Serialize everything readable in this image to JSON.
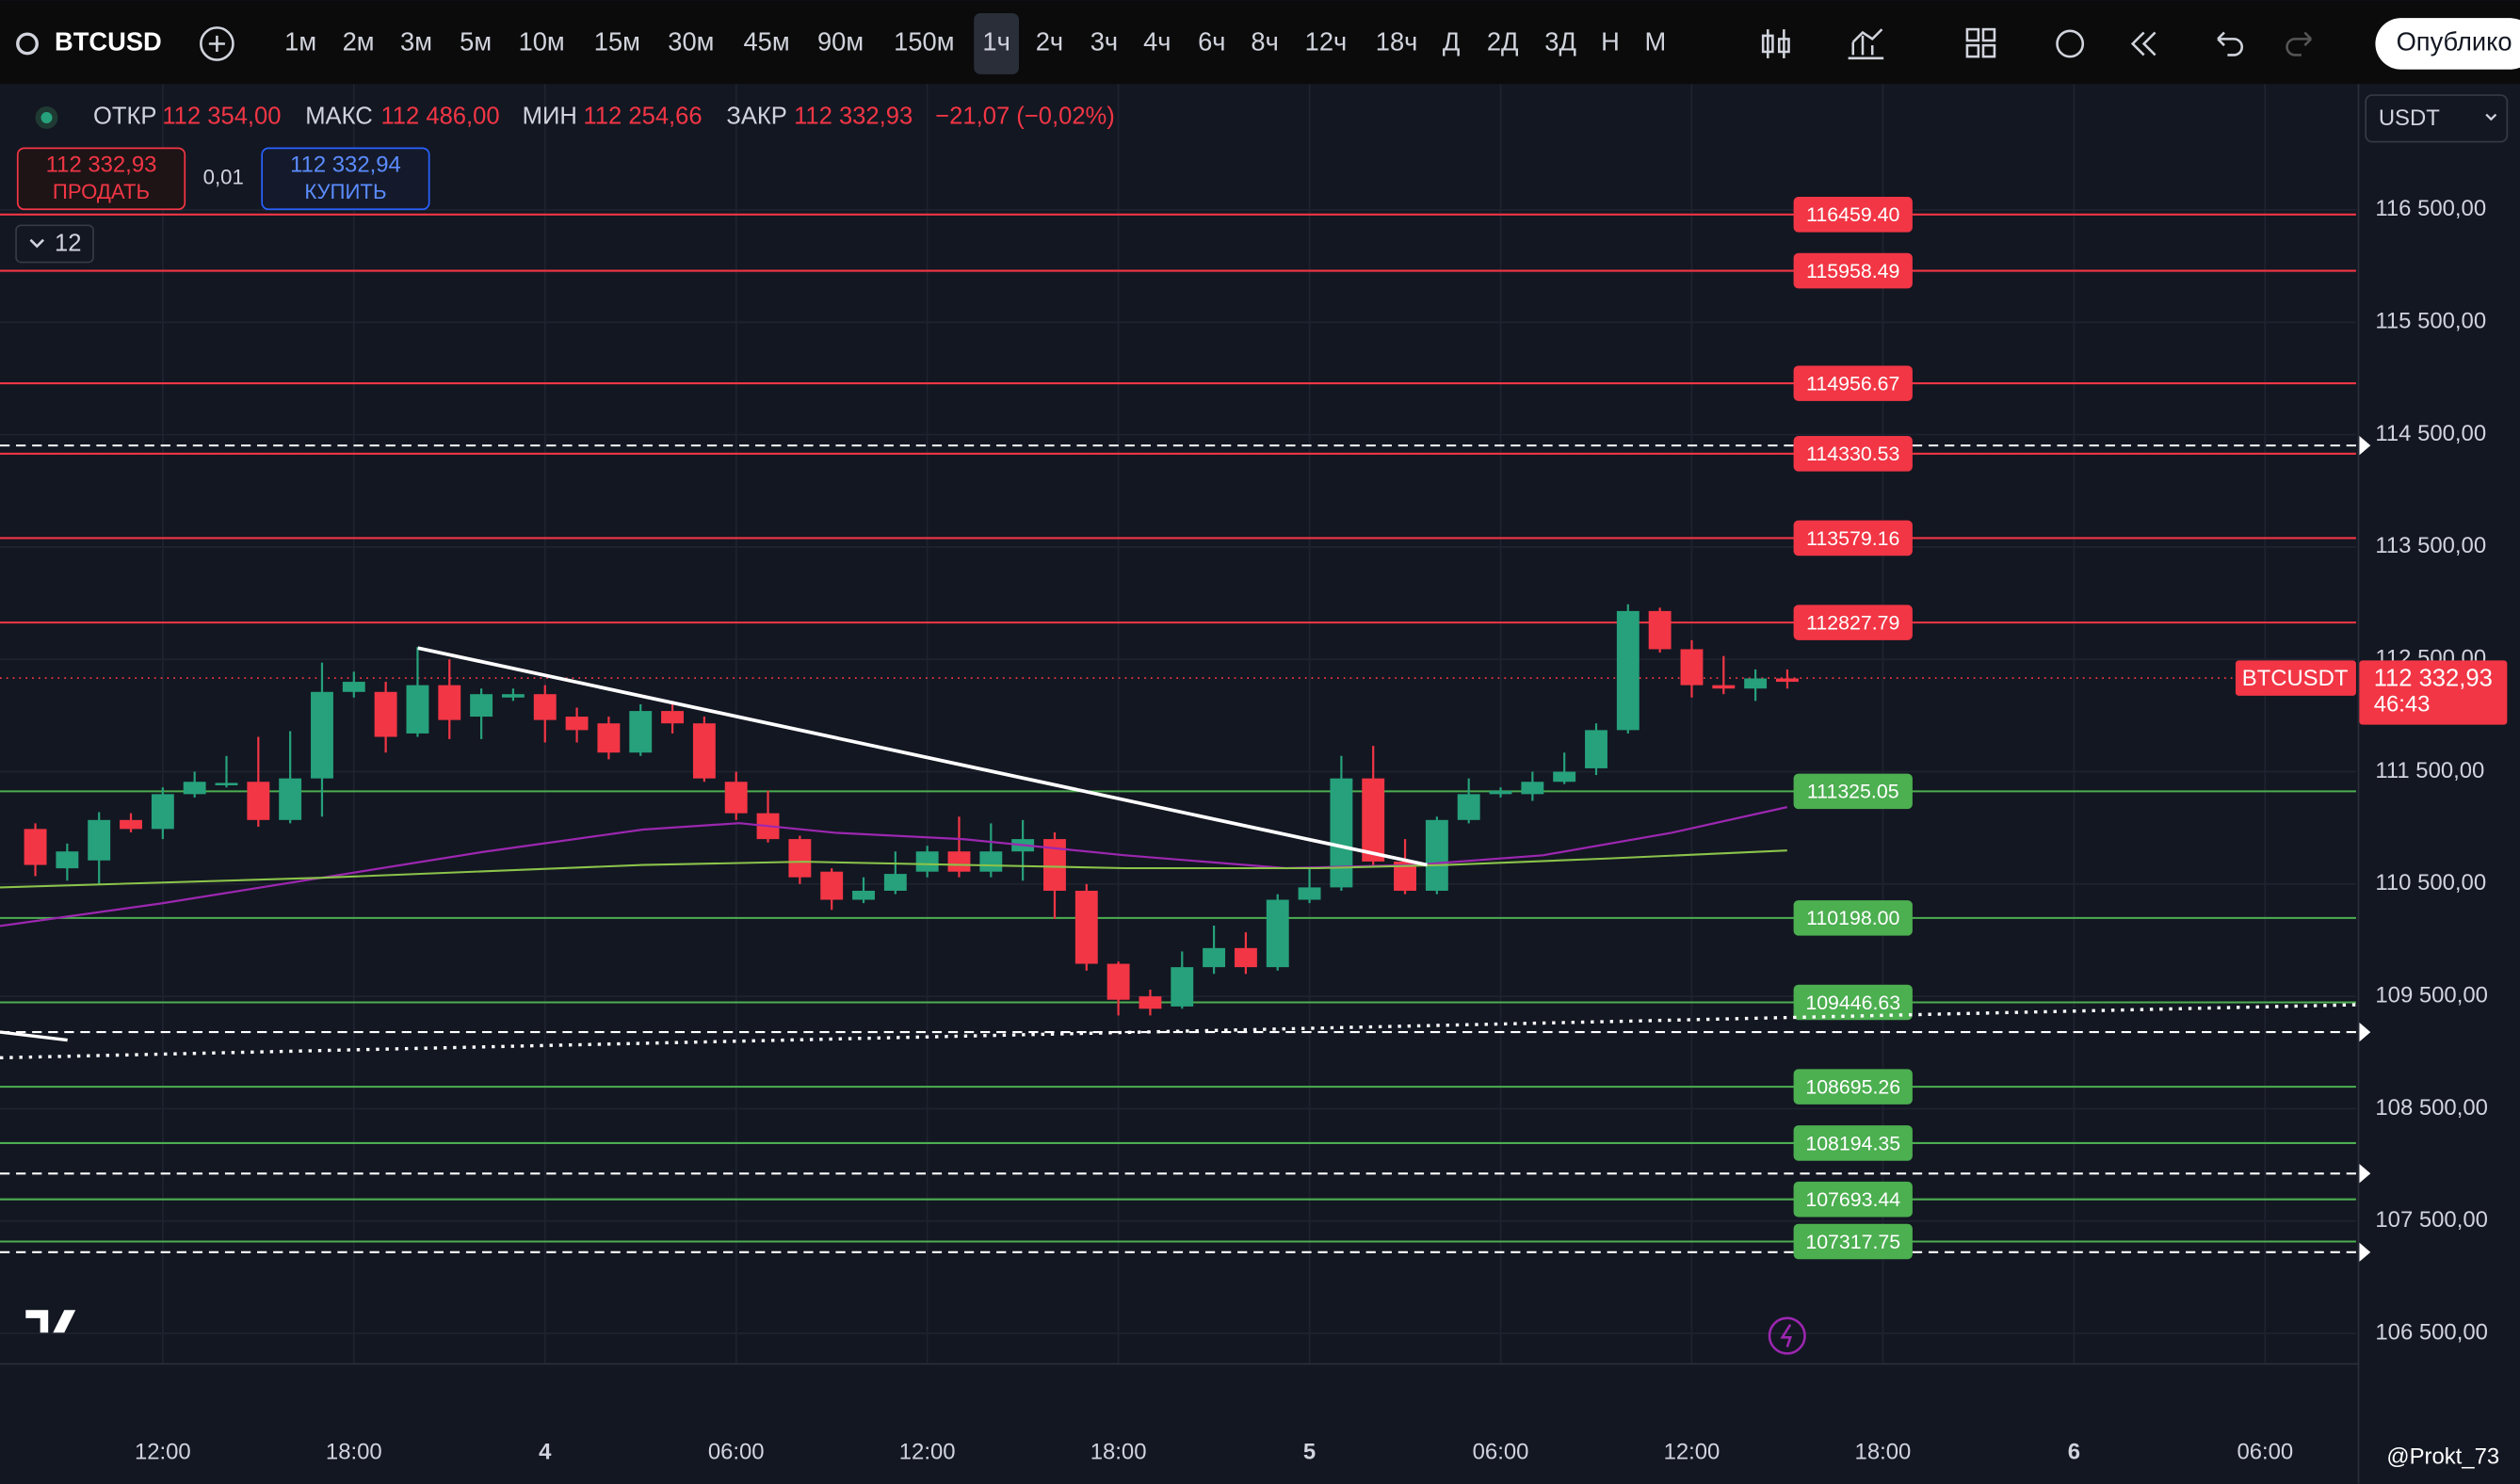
{
  "toolbar": {
    "symbol": "BTCUSD",
    "timeframes": [
      "1м",
      "2м",
      "3м",
      "5м",
      "10м",
      "15м",
      "30м",
      "45м",
      "90м",
      "150м",
      "1ч",
      "2ч",
      "3ч",
      "4ч",
      "6ч",
      "8ч",
      "12ч",
      "18ч",
      "Д",
      "2Д",
      "3Д",
      "Н",
      "М"
    ],
    "active_timeframe": "1ч",
    "publish": "Опублико"
  },
  "legend": {
    "open_label": "ОТКР",
    "open": "112 354,00",
    "high_label": "МАКС",
    "high": "112 486,00",
    "low_label": "МИН",
    "low": "112 254,66",
    "close_label": "ЗАКР",
    "close": "112 332,93",
    "change": "−21,07 (−0,02%)"
  },
  "trade": {
    "sell_price": "112 332,93",
    "sell": "ПРОДАТЬ",
    "spread": "0,01",
    "buy_price": "112 332,94",
    "buy": "КУПИТЬ"
  },
  "indicators_count": "12",
  "currency": "USDT",
  "watermark": "@Prokt_73",
  "chart": {
    "type": "candlestick",
    "ylim": [
      106250,
      117550
    ],
    "yticks": [
      {
        "value": 116500,
        "label": "116 500,00"
      },
      {
        "value": 115500,
        "label": "115 500,00"
      },
      {
        "value": 114500,
        "label": "114 500,00"
      },
      {
        "value": 113500,
        "label": "113 500,00"
      },
      {
        "value": 112500,
        "label": "112 500,00"
      },
      {
        "value": 111500,
        "label": "111 500,00"
      },
      {
        "value": 110500,
        "label": "110 500,00"
      },
      {
        "value": 109500,
        "label": "109 500,00"
      },
      {
        "value": 108500,
        "label": "108 500,00"
      },
      {
        "value": 107500,
        "label": "107 500,00"
      },
      {
        "value": 106500,
        "label": "106 500,00"
      }
    ],
    "time_labels": [
      "12:00",
      "18:00",
      "4",
      "06:00",
      "12:00",
      "18:00",
      "5",
      "06:00",
      "12:00",
      "18:00",
      "6",
      "06:00"
    ],
    "up_color": "#26a17b",
    "down_color": "#f23645",
    "candles": [
      [
        110990,
        111040,
        110570,
        110670
      ],
      [
        110640,
        110860,
        110530,
        110790
      ],
      [
        110710,
        111140,
        110500,
        111070
      ],
      [
        111070,
        111130,
        110960,
        110990
      ],
      [
        110990,
        111360,
        110900,
        111300
      ],
      [
        111300,
        111500,
        111270,
        111410
      ],
      [
        111390,
        111640,
        111360,
        111400
      ],
      [
        111410,
        111810,
        111010,
        111070
      ],
      [
        111070,
        111860,
        111040,
        111440
      ],
      [
        111440,
        112470,
        111100,
        112210
      ],
      [
        112210,
        112390,
        112160,
        112300
      ],
      [
        112210,
        112300,
        111670,
        111810
      ],
      [
        111840,
        112610,
        111810,
        112270
      ],
      [
        112270,
        112500,
        111790,
        111960
      ],
      [
        111990,
        112240,
        111790,
        112190
      ],
      [
        112160,
        112240,
        112130,
        112190
      ],
      [
        112190,
        112270,
        111760,
        111960
      ],
      [
        111990,
        112070,
        111760,
        111870
      ],
      [
        111930,
        111990,
        111610,
        111670
      ],
      [
        111670,
        112100,
        111640,
        112040
      ],
      [
        112040,
        112130,
        111840,
        111930
      ],
      [
        111930,
        111990,
        111410,
        111440
      ],
      [
        111410,
        111500,
        111070,
        111130
      ],
      [
        111130,
        111330,
        110870,
        110900
      ],
      [
        110900,
        110930,
        110500,
        110560
      ],
      [
        110610,
        110640,
        110270,
        110360
      ],
      [
        110360,
        110560,
        110330,
        110440
      ],
      [
        110440,
        110790,
        110410,
        110590
      ],
      [
        110610,
        110840,
        110560,
        110790
      ],
      [
        110790,
        111100,
        110560,
        110610
      ],
      [
        110610,
        111040,
        110560,
        110790
      ],
      [
        110790,
        111070,
        110530,
        110900
      ],
      [
        110900,
        110960,
        110190,
        110440
      ],
      [
        110440,
        110500,
        109730,
        109790
      ],
      [
        109790,
        109810,
        109330,
        109470
      ],
      [
        109500,
        109560,
        109330,
        109390
      ],
      [
        109410,
        109900,
        109390,
        109760
      ],
      [
        109760,
        110130,
        109700,
        109930
      ],
      [
        109930,
        110070,
        109700,
        109760
      ],
      [
        109760,
        110410,
        109730,
        110360
      ],
      [
        110360,
        110640,
        110330,
        110470
      ],
      [
        110470,
        111640,
        110440,
        111440
      ],
      [
        111440,
        111730,
        110670,
        110700
      ],
      [
        110700,
        110900,
        110410,
        110440
      ],
      [
        110440,
        111100,
        110410,
        111070
      ],
      [
        111070,
        111440,
        111040,
        111300
      ],
      [
        111300,
        111360,
        111270,
        111330
      ],
      [
        111300,
        111500,
        111240,
        111410
      ],
      [
        111410,
        111670,
        111390,
        111500
      ],
      [
        111530,
        111930,
        111470,
        111870
      ],
      [
        111870,
        112990,
        111840,
        112930
      ],
      [
        112930,
        112960,
        112560,
        112590
      ],
      [
        112590,
        112670,
        112160,
        112270
      ],
      [
        112270,
        112530,
        112190,
        112240
      ],
      [
        112240,
        112410,
        112130,
        112330
      ],
      [
        112330,
        112410,
        112240,
        112300
      ]
    ],
    "levels": [
      {
        "value": 116459.4,
        "label": "116459.40",
        "color": "#f23645"
      },
      {
        "value": 115958.49,
        "label": "115958.49",
        "color": "#f23645"
      },
      {
        "value": 114956.67,
        "label": "114956.67",
        "color": "#f23645"
      },
      {
        "value": 114330.53,
        "label": "114330.53",
        "color": "#f23645"
      },
      {
        "value": 113579.16,
        "label": "113579.16",
        "color": "#f23645"
      },
      {
        "value": 112827.79,
        "label": "112827.79",
        "color": "#f23645"
      },
      {
        "value": 111325.05,
        "label": "111325.05",
        "color": "#4caf50"
      },
      {
        "value": 110198,
        "label": "110198.00",
        "color": "#4caf50"
      },
      {
        "value": 109446.63,
        "label": "109446.63",
        "color": "#4caf50"
      },
      {
        "value": 108695.26,
        "label": "108695.26",
        "color": "#4caf50"
      },
      {
        "value": 108194.35,
        "label": "108194.35",
        "color": "#4caf50"
      },
      {
        "value": 107693.44,
        "label": "107693.44",
        "color": "#4caf50"
      },
      {
        "value": 107317.75,
        "label": "107317.75",
        "color": "#4caf50"
      }
    ],
    "dashed_levels": [
      114403,
      109182,
      107923,
      107223
    ],
    "last_price": {
      "symbol": "BTCUSDT",
      "value": 112332.93,
      "label": "112 332,93",
      "countdown": "46:43"
    }
  }
}
